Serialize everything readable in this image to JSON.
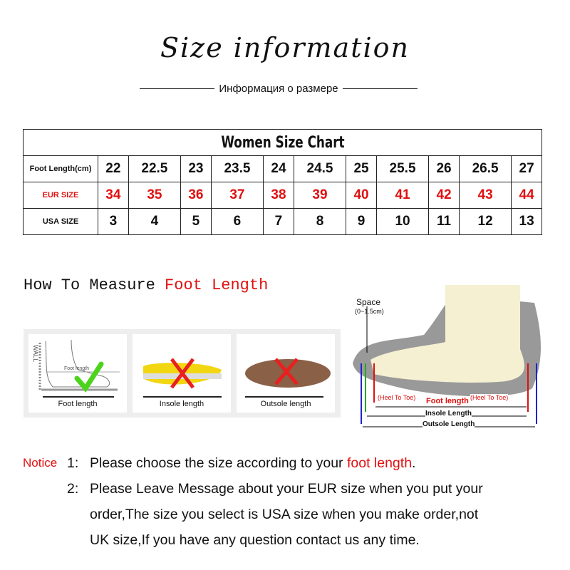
{
  "header": {
    "title": "Size information",
    "subtitle": "Информация о размере"
  },
  "size_chart": {
    "caption": "Women Size Chart",
    "rows": [
      {
        "label": "Foot Length(cm)",
        "values": [
          "22",
          "22.5",
          "23",
          "23.5",
          "24",
          "24.5",
          "25",
          "25.5",
          "26",
          "26.5",
          "27"
        ],
        "color": "#111111"
      },
      {
        "label": "EUR SIZE",
        "values": [
          "34",
          "35",
          "36",
          "37",
          "38",
          "39",
          "40",
          "41",
          "42",
          "43",
          "44"
        ],
        "color": "#e01010"
      },
      {
        "label": "USA SIZE",
        "values": [
          "3",
          "4",
          "5",
          "6",
          "7",
          "8",
          "9",
          "10",
          "11",
          "12",
          "13"
        ],
        "color": "#111111"
      }
    ]
  },
  "measure": {
    "prefix": "How To Measure ",
    "highlight": "Foot Length",
    "cards": [
      {
        "label": "Foot length",
        "wall": "WALL",
        "inner": "Foot length",
        "mark": "check"
      },
      {
        "label": "Insole length",
        "mark": "cross"
      },
      {
        "label": "Outsole length",
        "mark": "cross"
      }
    ]
  },
  "diagram": {
    "space": "Space",
    "space_range": "(0~1.5cm)",
    "heel_to_toe": "(Heel To Toe)",
    "foot_length": "Foot length",
    "insole": "Insole Length",
    "outsole": "Outsole Length"
  },
  "notes": {
    "notice": "Notice",
    "items": [
      {
        "num": "1:",
        "text": "Please choose the size according to your ",
        "highlight": "foot length",
        "end": "."
      },
      {
        "num": "2:",
        "lines": [
          "Please Leave Message about your EUR size when you put your",
          "order,The size you select is USA size when you make order,not",
          "UK size,If you have any question  contact us any time."
        ]
      }
    ]
  },
  "colors": {
    "accent": "#e01010",
    "check": "#4cd41c"
  }
}
